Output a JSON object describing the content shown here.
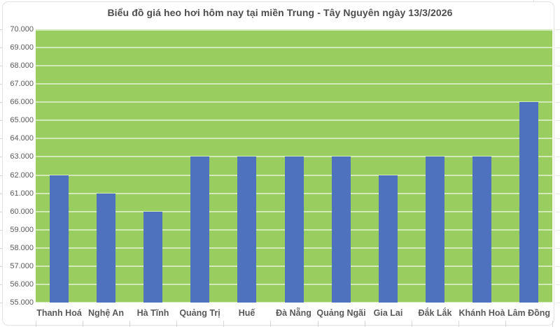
{
  "title": "Biểu đồ giá heo hơi hôm nay tại miền Trung - Tây Nguyên ngày 13/3/2026",
  "chart_data": {
    "type": "bar",
    "title": "Biểu đồ giá heo hơi hôm nay tại miền Trung - Tây Nguyên ngày 13/3/2026",
    "categories": [
      "Thanh Hoá",
      "Nghệ An",
      "Hà Tĩnh",
      "Quảng Trị",
      "Huế",
      "Đà Nẵng",
      "Quảng Ngãi",
      "Gia Lai",
      "Đắk Lắk",
      "Khánh Hoà",
      "Lâm Đồng"
    ],
    "values": [
      62000,
      61000,
      60000,
      63000,
      63000,
      63000,
      63000,
      62000,
      63000,
      63000,
      66000
    ],
    "xlabel": "",
    "ylabel": "",
    "ylim": [
      55000,
      70000
    ],
    "ytick_step": 1000,
    "ytick_labels": [
      "70.000",
      "69.000",
      "68.000",
      "67.000",
      "66.000",
      "65.000",
      "64.000",
      "63.000",
      "62.000",
      "61.000",
      "60.000",
      "59.000",
      "58.000",
      "57.000",
      "56.000",
      "55.000"
    ],
    "grid": true,
    "legend": "none",
    "colors": {
      "bar": "#4e72be",
      "plot_background": "#99cd60",
      "gridline": "rgba(255,255,255,0.55)",
      "title_text": "#4d4d4d",
      "axis_text": "#595959",
      "chart_border": "#e2e2e2"
    }
  }
}
